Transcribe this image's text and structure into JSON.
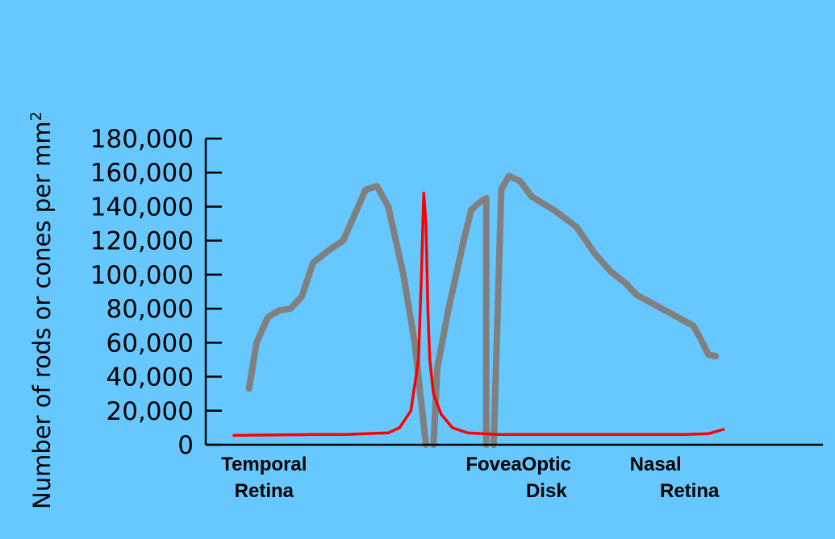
{
  "chart_data": {
    "type": "line",
    "title": "",
    "ylabel": "Number of rods or cones per mm",
    "ylabel_superscript": "2",
    "ylim": [
      0,
      180000
    ],
    "yticks": [
      0,
      20000,
      40000,
      60000,
      80000,
      100000,
      120000,
      140000,
      160000,
      180000
    ],
    "ytick_labels": [
      "0",
      "20,000",
      "40,000",
      "60,000",
      "80,000",
      "100,000",
      "120,000",
      "140,000",
      "160,000",
      "180,000"
    ],
    "x_range": [
      -70,
      80
    ],
    "grid": false,
    "legend": "none",
    "region_labels": [
      {
        "line1": "Temporal",
        "line2": "Retina",
        "x": -62
      },
      {
        "line1": "Fovea",
        "line2": "",
        "x": -1
      },
      {
        "line1": "Optic",
        "line2": "Disk",
        "x": 13
      },
      {
        "line1": "Nasal",
        "line2": "Retina",
        "x": 42
      }
    ],
    "series": [
      {
        "color": "#808080",
        "width": 8,
        "segments": [
          [
            [
              -66,
              33000
            ],
            [
              -64,
              60000
            ],
            [
              -61,
              75000
            ],
            [
              -58,
              79000
            ],
            [
              -55,
              80000
            ],
            [
              -52,
              87000
            ],
            [
              -49,
              107000
            ],
            [
              -45,
              114000
            ],
            [
              -41,
              120000
            ],
            [
              -38,
              135000
            ],
            [
              -35,
              150000
            ],
            [
              -32,
              152000
            ],
            [
              -29,
              140000
            ],
            [
              -25,
              100000
            ],
            [
              -22,
              60000
            ],
            [
              -20,
              20000
            ],
            [
              -19,
              0
            ]
          ],
          [
            [
              -17,
              0
            ],
            [
              -16,
              45000
            ],
            [
              -13,
              80000
            ],
            [
              -9,
              120000
            ],
            [
              -7,
              138000
            ],
            [
              -5,
              142000
            ],
            [
              -3,
              145000
            ],
            [
              -3,
              0
            ]
          ],
          [
            [
              -1,
              0
            ],
            [
              1,
              150000
            ],
            [
              3,
              158000
            ],
            [
              6,
              155000
            ],
            [
              9,
              146000
            ],
            [
              15,
              138000
            ],
            [
              21,
              128000
            ],
            [
              26,
              112000
            ],
            [
              30,
              102000
            ],
            [
              34,
              95000
            ],
            [
              37,
              88000
            ],
            [
              42,
              82000
            ],
            [
              47,
              76000
            ],
            [
              52,
              70000
            ],
            [
              54,
              62000
            ],
            [
              56,
              53000
            ],
            [
              58,
              52000
            ]
          ]
        ]
      },
      {
        "color": "#ff0000",
        "width": 3.5,
        "segments": [
          [
            [
              -70,
              5500
            ],
            [
              -50,
              6000
            ],
            [
              -40,
              6000
            ],
            [
              -35,
              6500
            ],
            [
              -29,
              7000
            ],
            [
              -26,
              10000
            ],
            [
              -23,
              20000
            ],
            [
              -21,
              50000
            ],
            [
              -20.2,
              100000
            ],
            [
              -19.6,
              148000
            ],
            [
              -19,
              130000
            ],
            [
              -18.5,
              80000
            ],
            [
              -18,
              50000
            ],
            [
              -17,
              30000
            ],
            [
              -15,
              18000
            ],
            [
              -12,
              10000
            ],
            [
              -8,
              7000
            ],
            [
              0,
              6000
            ],
            [
              20,
              6000
            ],
            [
              50,
              6000
            ],
            [
              56,
              6500
            ],
            [
              60,
              9000
            ]
          ]
        ]
      }
    ]
  }
}
